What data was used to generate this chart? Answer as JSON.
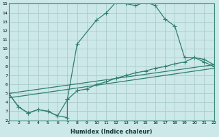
{
  "xlabel": "Humidex (Indice chaleur)",
  "bg_color": "#cce8e8",
  "grid_color": "#aacccc",
  "line_color": "#2e7d6e",
  "xlim": [
    1,
    22
  ],
  "ylim": [
    2,
    15
  ],
  "xticks": [
    1,
    2,
    3,
    4,
    5,
    6,
    7,
    8,
    9,
    10,
    11,
    12,
    13,
    14,
    15,
    16,
    17,
    18,
    19,
    20,
    21,
    22
  ],
  "yticks": [
    2,
    3,
    4,
    5,
    6,
    7,
    8,
    9,
    10,
    11,
    12,
    13,
    14,
    15
  ],
  "line1_x": [
    1,
    2,
    3,
    4,
    5,
    6,
    7,
    7,
    8,
    10,
    11,
    12,
    13,
    14,
    15,
    16,
    17,
    18,
    19,
    20,
    21,
    22
  ],
  "line1_y": [
    5.0,
    3.5,
    2.8,
    3.2,
    3.0,
    2.5,
    2.3,
    4.3,
    10.5,
    13.2,
    14.0,
    15.2,
    15.0,
    14.8,
    15.2,
    14.8,
    13.3,
    12.5,
    9.0,
    9.0,
    8.5,
    8.0
  ],
  "line2_x": [
    1,
    2,
    3,
    4,
    5,
    6,
    7,
    8,
    9,
    10,
    11,
    12,
    13,
    14,
    15,
    16,
    17,
    18,
    19,
    20,
    21,
    22
  ],
  "line2_y": [
    5.0,
    3.5,
    2.8,
    3.2,
    3.0,
    2.5,
    4.3,
    5.3,
    5.5,
    6.0,
    6.3,
    6.7,
    7.0,
    7.3,
    7.5,
    7.8,
    8.0,
    8.3,
    8.5,
    9.0,
    8.8,
    8.2
  ],
  "line4_x": [
    1,
    22
  ],
  "line4_y": [
    5.0,
    8.2
  ],
  "line5_x": [
    1,
    22
  ],
  "line5_y": [
    4.5,
    7.8
  ]
}
